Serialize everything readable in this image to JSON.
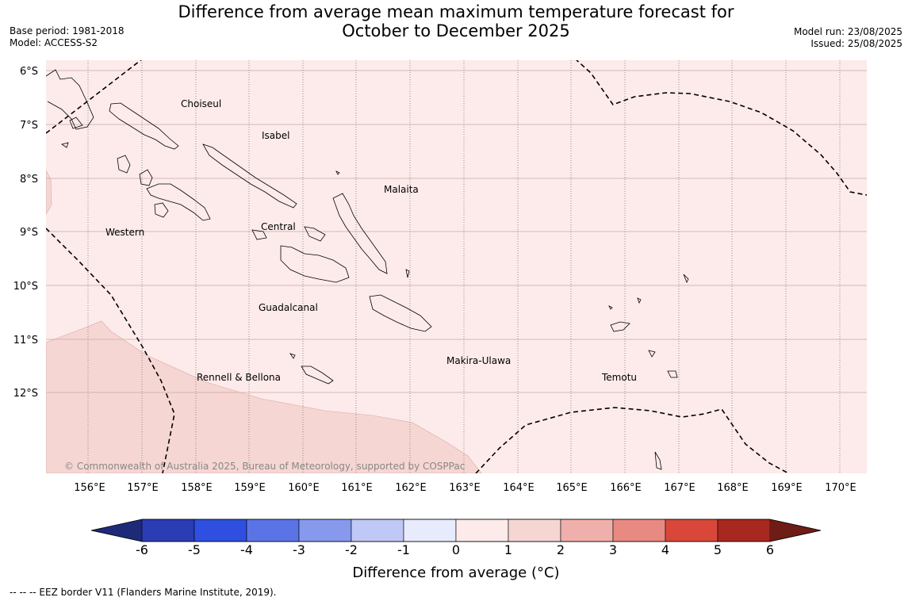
{
  "title_line1": "Difference from average mean maximum temperature forecast for",
  "title_line2": "October to December 2025",
  "base_period": "Base period: 1981-2018",
  "model": "Model: ACCESS-S2",
  "model_run": "Model run: 23/08/2025",
  "issued": "Issued: 25/08/2025",
  "copyright": "© Commonwealth of Australia 2025, Bureau of Meteorology, supported by COSPPac",
  "footnote": "--  --  -- EEZ border V11 (Flanders Marine Institute, 2019).",
  "lat_labels": [
    "6°S",
    "7°S",
    "8°S",
    "9°S",
    "10°S",
    "11°S",
    "12°S"
  ],
  "lon_labels": [
    "156°E",
    "157°E",
    "158°E",
    "159°E",
    "160°E",
    "161°E",
    "162°E",
    "163°E",
    "164°E",
    "165°E",
    "166°E",
    "167°E",
    "168°E",
    "169°E",
    "170°E"
  ],
  "place_names": [
    "Choiseul",
    "Isabel",
    "Malaita",
    "Western",
    "Central",
    "Guadalcanal",
    "Makira-Ulawa",
    "Temotu",
    "Rennell & Bellona"
  ],
  "colorbar": {
    "label": "Difference from average (°C)",
    "tick_labels": [
      "-6",
      "-5",
      "-4",
      "-3",
      "-2",
      "-1",
      "0",
      "1",
      "2",
      "3",
      "4",
      "5",
      "6"
    ],
    "colors": [
      "#1e2a78",
      "#2a3db5",
      "#2f4fe0",
      "#5a74e6",
      "#8799ec",
      "#c0c9f5",
      "#e8ebfc",
      "#fcebea",
      "#f6d6d3",
      "#efb0ab",
      "#e88a81",
      "#d9473b",
      "#a82820",
      "#6e1c16"
    ]
  },
  "field_colors": {
    "ocean_anomaly_0_1": "#fcebea",
    "anomaly_1_2": "#f6d6d3"
  }
}
